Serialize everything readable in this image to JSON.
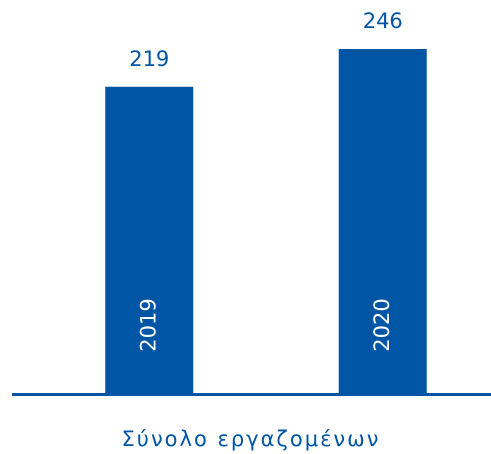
{
  "chart_data": {
    "type": "bar",
    "xlabel": "Σύνολο εργαζομένων",
    "categories": [
      "2019",
      "2020"
    ],
    "values": [
      219,
      246
    ],
    "color": "#0055a5"
  }
}
